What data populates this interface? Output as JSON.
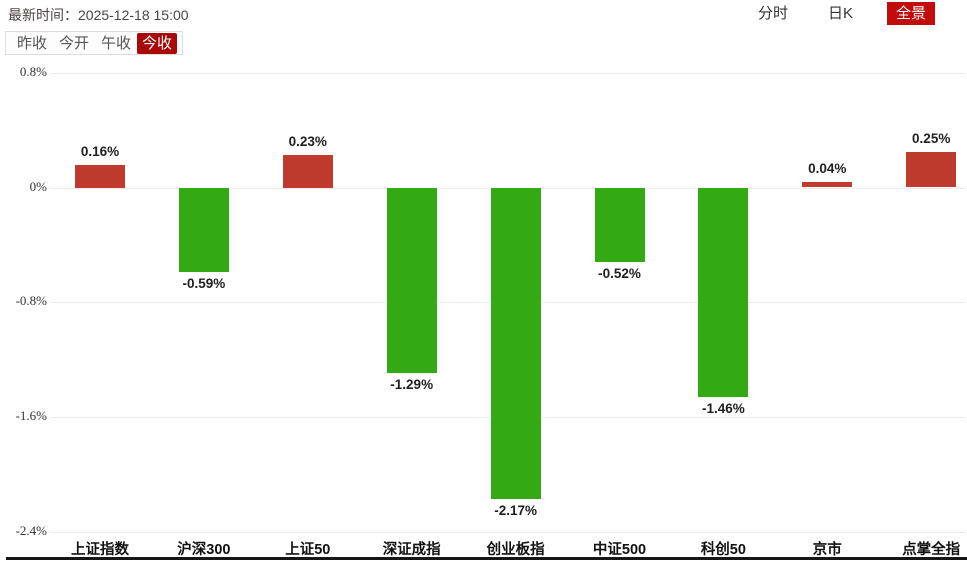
{
  "header": {
    "time_label": "最新时间：",
    "time_value": "2025-12-18 15:00",
    "view_tabs": [
      {
        "label": "分时",
        "active": false
      },
      {
        "label": "日K",
        "active": false
      },
      {
        "label": "全景",
        "active": true
      }
    ],
    "price_tabs": [
      {
        "label": "昨收",
        "active": false
      },
      {
        "label": "今开",
        "active": false
      },
      {
        "label": "午收",
        "active": false
      },
      {
        "label": "今收",
        "active": true
      }
    ]
  },
  "colors": {
    "up_bar": "#c03a2d",
    "down_bar": "#33a913",
    "view_tab_active_bg": "#c20b0b",
    "price_tab_active_bg": "#a80808"
  },
  "chart_data": {
    "type": "bar",
    "title": "",
    "xlabel": "",
    "ylabel": "",
    "categories": [
      "上证指数",
      "沪深300",
      "上证50",
      "深证成指",
      "创业板指",
      "中证500",
      "科创50",
      "京市",
      "点掌全指"
    ],
    "values": [
      0.16,
      -0.59,
      0.23,
      -1.29,
      -2.17,
      -0.52,
      -1.46,
      0.04,
      0.25
    ],
    "value_labels": [
      "0.16%",
      "-0.59%",
      "0.23%",
      "-1.29%",
      "-2.17%",
      "-0.52%",
      "-1.46%",
      "0.04%",
      "0.25%"
    ],
    "yticks": [
      {
        "label": "0.8%",
        "value": 0.8
      },
      {
        "label": "0%",
        "value": 0.0
      },
      {
        "label": "-0.8%",
        "value": -0.8
      },
      {
        "label": "-1.6%",
        "value": -1.6
      },
      {
        "label": "-2.4%",
        "value": -2.4
      }
    ],
    "ylim": [
      -2.4,
      0.8
    ],
    "grid": true,
    "legend": null,
    "color_rule": "positive=red(up), negative=green(down)"
  }
}
